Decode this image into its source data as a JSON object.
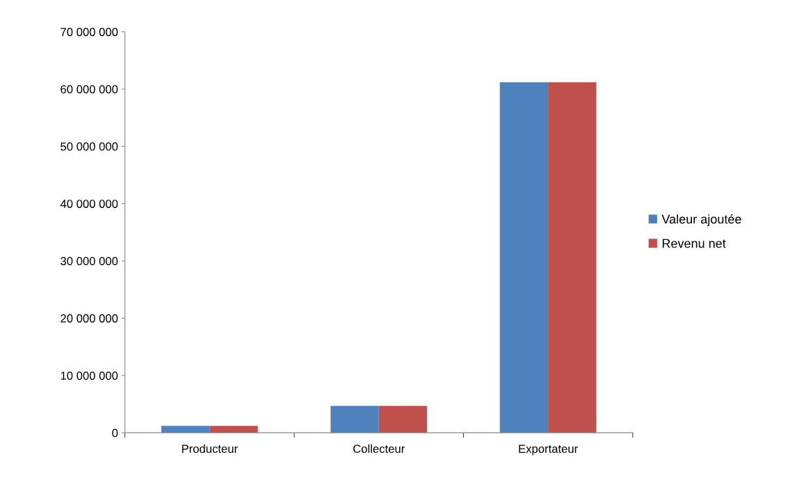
{
  "chart_data": {
    "type": "bar",
    "categories": [
      "Producteur",
      "Collecteur",
      "Exportateur"
    ],
    "series": [
      {
        "name": "Valeur ajoutée",
        "color": "#4f81bd",
        "values": [
          1200000,
          4700000,
          61200000
        ]
      },
      {
        "name": "Revenu net",
        "color": "#c0504d",
        "values": [
          1200000,
          4700000,
          61200000
        ]
      }
    ],
    "ylim": [
      0,
      70000000
    ],
    "yticks": [
      {
        "value": 0,
        "label": "0"
      },
      {
        "value": 10000000,
        "label": "10 000 000"
      },
      {
        "value": 20000000,
        "label": "20 000 000"
      },
      {
        "value": 30000000,
        "label": "30 000 000"
      },
      {
        "value": 40000000,
        "label": "40 000 000"
      },
      {
        "value": 50000000,
        "label": "50 000 000"
      },
      {
        "value": 60000000,
        "label": "60 000 000"
      },
      {
        "value": 70000000,
        "label": "70 000 000"
      }
    ],
    "grid": false,
    "legend": "right"
  }
}
